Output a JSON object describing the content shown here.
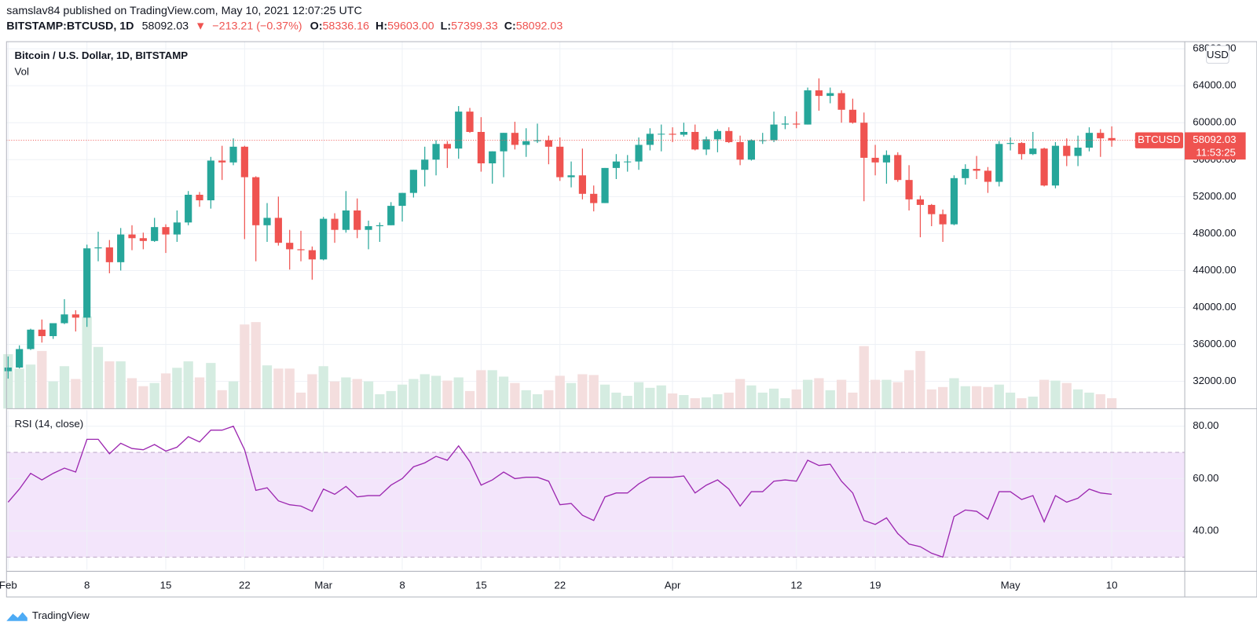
{
  "header": {
    "publisher": "samslav84 published on TradingView.com, May 10, 2021 12:07:25 UTC",
    "symbol": "BITSTAMP:BTCUSD, 1D",
    "last": "58092.03",
    "direction": "▼",
    "change": "−213.21 (−0.37%)",
    "ohlc": [
      {
        "label": "O:",
        "value": "58336.16"
      },
      {
        "label": "H:",
        "value": "59603.00"
      },
      {
        "label": "L:",
        "value": "57399.33"
      },
      {
        "label": "C:",
        "value": "58092.03"
      }
    ]
  },
  "footer": {
    "brand": "TradingView"
  },
  "chart_data": {
    "type": "candlestick",
    "title": "Bitcoin / U.S. Dollar, 1D, BITSTAMP",
    "volume_label": "Vol",
    "currency": "USD",
    "symbol_label": "BTCUSD",
    "countdown": "11:53:25",
    "up_color": "#26a69a",
    "down_color": "#ef5350",
    "volume_up_color": "#d5ece1",
    "volume_down_color": "#f4dede",
    "grid": true,
    "x": [
      "Feb 1",
      "Feb 2",
      "Feb 3",
      "Feb 4",
      "Feb 5",
      "Feb 6",
      "Feb 7",
      "Feb 8",
      "Feb 9",
      "Feb 10",
      "Feb 11",
      "Feb 12",
      "Feb 13",
      "Feb 14",
      "Feb 15",
      "Feb 16",
      "Feb 17",
      "Feb 18",
      "Feb 19",
      "Feb 20",
      "Feb 21",
      "Feb 22",
      "Feb 23",
      "Feb 24",
      "Feb 25",
      "Feb 26",
      "Feb 27",
      "Feb 28",
      "Mar 1",
      "Mar 2",
      "Mar 3",
      "Mar 4",
      "Mar 5",
      "Mar 6",
      "Mar 7",
      "Mar 8",
      "Mar 9",
      "Mar 10",
      "Mar 11",
      "Mar 12",
      "Mar 13",
      "Mar 14",
      "Mar 15",
      "Mar 16",
      "Mar 17",
      "Mar 18",
      "Mar 19",
      "Mar 20",
      "Mar 21",
      "Mar 22",
      "Mar 23",
      "Mar 24",
      "Mar 25",
      "Mar 26",
      "Mar 27",
      "Mar 28",
      "Mar 29",
      "Mar 30",
      "Mar 31",
      "Apr 1",
      "Apr 2",
      "Apr 3",
      "Apr 4",
      "Apr 5",
      "Apr 6",
      "Apr 7",
      "Apr 8",
      "Apr 9",
      "Apr 10",
      "Apr 11",
      "Apr 12",
      "Apr 13",
      "Apr 14",
      "Apr 15",
      "Apr 16",
      "Apr 17",
      "Apr 18",
      "Apr 19",
      "Apr 20",
      "Apr 21",
      "Apr 22",
      "Apr 23",
      "Apr 24",
      "Apr 25",
      "Apr 26",
      "Apr 27",
      "Apr 28",
      "Apr 29",
      "Apr 30",
      "May 1",
      "May 2",
      "May 3",
      "May 4",
      "May 5",
      "May 6",
      "May 7",
      "May 8",
      "May 9",
      "May 10"
    ],
    "open": [
      33100,
      33500,
      35500,
      37600,
      36900,
      38300,
      39250,
      38900,
      46400,
      46500,
      44900,
      47900,
      47500,
      47200,
      48700,
      47900,
      49200,
      52200,
      51600,
      55900,
      55700,
      57400,
      54100,
      48900,
      49700,
      47000,
      46300,
      46200,
      45200,
      49600,
      48400,
      50500,
      48400,
      48800,
      48900,
      51000,
      52400,
      54900,
      56000,
      57700,
      57200,
      61200,
      59000,
      55600,
      56900,
      58900,
      57600,
      58000,
      58100,
      57400,
      54100,
      54300,
      52300,
      51300,
      55100,
      55800,
      55800,
      57600,
      58800,
      58800,
      58700,
      59000,
      57100,
      58200,
      59100,
      57900,
      56000,
      58100,
      58100,
      59800,
      59900,
      59800,
      63500,
      62900,
      63200,
      61400,
      60000,
      56200,
      55700,
      56500,
      53800,
      51700,
      51100,
      50100,
      49000,
      54000,
      55000,
      54800,
      53600,
      57700,
      57800,
      56600,
      57200,
      53200,
      57500,
      56400,
      57300,
      58900,
      58336.16
    ],
    "high": [
      34700,
      35900,
      37700,
      38700,
      38300,
      40900,
      39700,
      46800,
      48200,
      47300,
      48600,
      48900,
      48100,
      49700,
      49000,
      50500,
      52600,
      52500,
      56300,
      57500,
      58300,
      57500,
      54200,
      51300,
      52000,
      48400,
      48300,
      46600,
      49800,
      50200,
      52600,
      51800,
      49400,
      49200,
      51400,
      52400,
      54900,
      57400,
      58100,
      58000,
      61800,
      61600,
      60600,
      56900,
      58900,
      60100,
      59400,
      59900,
      58600,
      58400,
      55800,
      57200,
      53200,
      55100,
      56600,
      56500,
      58400,
      59400,
      59800,
      59500,
      60000,
      59800,
      58500,
      59300,
      59500,
      58600,
      58200,
      58900,
      61200,
      60700,
      61200,
      63800,
      64800,
      63800,
      63500,
      62600,
      61100,
      57600,
      57000,
      56800,
      55400,
      52100,
      51200,
      50600,
      54300,
      55500,
      56400,
      55200,
      58000,
      58400,
      57900,
      59000,
      57300,
      57900,
      58300,
      58600,
      59500,
      59300,
      59603
    ],
    "low": [
      32300,
      33400,
      35400,
      36200,
      36600,
      38200,
      37400,
      37900,
      45000,
      43700,
      44000,
      46200,
      46300,
      47100,
      45900,
      47100,
      48900,
      50900,
      50700,
      53800,
      55400,
      47400,
      45000,
      47100,
      46700,
      44100,
      45000,
      43000,
      45100,
      47000,
      48100,
      47500,
      46300,
      47100,
      48900,
      49300,
      51900,
      53100,
      54300,
      55100,
      56100,
      58900,
      54700,
      53400,
      54100,
      57100,
      56300,
      57800,
      55500,
      53700,
      53000,
      51700,
      50400,
      51300,
      53900,
      54700,
      54900,
      57000,
      56900,
      57900,
      58500,
      57000,
      56500,
      56800,
      57800,
      55400,
      55900,
      57700,
      57900,
      59300,
      59400,
      59800,
      61300,
      62100,
      60000,
      59900,
      51500,
      54300,
      53400,
      53600,
      50500,
      47600,
      48800,
      47100,
      48900,
      53300,
      53900,
      52400,
      53100,
      57000,
      56000,
      56500,
      53100,
      52900,
      55300,
      55300,
      56900,
      56300,
      57399.33
    ],
    "close": [
      33500,
      35500,
      37600,
      36900,
      38300,
      39250,
      38900,
      46400,
      46500,
      44900,
      47900,
      47500,
      47200,
      48700,
      47900,
      49200,
      52200,
      51600,
      55900,
      55700,
      57400,
      54100,
      48900,
      49700,
      47000,
      46300,
      46200,
      45200,
      49600,
      48400,
      50500,
      48400,
      48800,
      48900,
      51000,
      52400,
      54900,
      56000,
      57700,
      57200,
      61200,
      59000,
      55600,
      56900,
      58900,
      57600,
      58000,
      58100,
      57400,
      54100,
      54300,
      52300,
      51300,
      55100,
      55800,
      55800,
      57600,
      58800,
      58800,
      58700,
      59000,
      57100,
      58200,
      59100,
      57900,
      56000,
      58100,
      58100,
      59800,
      59900,
      59800,
      63500,
      62900,
      63200,
      61400,
      60000,
      56200,
      55700,
      56500,
      53800,
      51700,
      51100,
      50100,
      49000,
      54000,
      55000,
      54800,
      53600,
      57700,
      57800,
      56600,
      57200,
      53200,
      57500,
      56400,
      57300,
      58900,
      58305.24,
      58092.03
    ],
    "volume": [
      13600,
      10000,
      11000,
      14400,
      6800,
      10600,
      7400,
      23000,
      15400,
      11800,
      11800,
      7600,
      5600,
      6400,
      8800,
      10200,
      11800,
      7800,
      11400,
      4600,
      6800,
      21000,
      21600,
      10800,
      10000,
      10000,
      4000,
      8600,
      10600,
      6800,
      7800,
      7400,
      6800,
      3600,
      4400,
      6000,
      7400,
      8600,
      8200,
      7000,
      7800,
      4400,
      9600,
      9600,
      8000,
      6400,
      4600,
      3600,
      4600,
      8200,
      6400,
      8600,
      8400,
      6000,
      4000,
      3200,
      6600,
      5200,
      5800,
      3800,
      3400,
      2600,
      2800,
      3600,
      4000,
      7400,
      5800,
      4000,
      5000,
      2600,
      4800,
      7200,
      7600,
      4600,
      7200,
      4000,
      15600,
      7200,
      7200,
      6600,
      9600,
      14400,
      4800,
      5400,
      7600,
      5600,
      5600,
      5400,
      6000,
      4000,
      2600,
      3000,
      7200,
      7000,
      6400,
      4800,
      4000,
      3600,
      2600
    ],
    "ylim": [
      29050,
      68770
    ],
    "yticks": [
      {
        "value": 32000,
        "label": "32000.00"
      },
      {
        "value": 36000,
        "label": "36000.00"
      },
      {
        "value": 40000,
        "label": "40000.00"
      },
      {
        "value": 44000,
        "label": "44000.00"
      },
      {
        "value": 48000,
        "label": "48000.00"
      },
      {
        "value": 52000,
        "label": "52000.00"
      },
      {
        "value": 56000,
        "label": "56000.00"
      },
      {
        "value": 60000,
        "label": "60000.00"
      },
      {
        "value": 64000,
        "label": "64000.00"
      },
      {
        "value": 68000,
        "label": "68000.00"
      }
    ],
    "xticks": [
      {
        "value": "Feb 1",
        "label": "Feb"
      },
      {
        "value": "Feb 8",
        "label": "8"
      },
      {
        "value": "Feb 15",
        "label": "15"
      },
      {
        "value": "Feb 22",
        "label": "22"
      },
      {
        "value": "Mar 1",
        "label": "Mar"
      },
      {
        "value": "Mar 8",
        "label": "8"
      },
      {
        "value": "Mar 15",
        "label": "15"
      },
      {
        "value": "Mar 22",
        "label": "22"
      },
      {
        "value": "Apr 1",
        "label": "Apr"
      },
      {
        "value": "Apr 12",
        "label": "12"
      },
      {
        "value": "Apr 19",
        "label": "19"
      },
      {
        "value": "May 1",
        "label": "May"
      },
      {
        "value": "May 10",
        "label": "10"
      }
    ],
    "rsi": {
      "title": "RSI (14, close)",
      "color": "#9c27b0",
      "band_color": "#f3e5fb",
      "bands": [
        30,
        70
      ],
      "values": [
        51,
        56,
        62,
        59.5,
        62,
        64,
        62.5,
        75,
        75,
        69.5,
        73.5,
        71.5,
        71,
        73,
        70.5,
        72,
        76,
        74,
        78.5,
        78.5,
        80,
        71,
        55.5,
        56.5,
        51.5,
        50,
        49.5,
        47.5,
        56,
        54,
        57,
        53,
        53.5,
        53.5,
        57.5,
        60,
        64.5,
        66,
        68.5,
        67,
        72.5,
        66.5,
        57.5,
        59.5,
        62.5,
        60,
        60.5,
        60.5,
        59,
        50,
        50.5,
        46,
        44,
        53,
        54.5,
        54.5,
        58,
        60.5,
        60.5,
        60.5,
        61,
        54.5,
        57.5,
        59.5,
        56,
        49.5,
        55,
        55,
        59,
        59.5,
        59,
        67,
        65,
        65.5,
        59,
        54.5,
        44,
        42.5,
        45,
        39,
        35,
        34,
        31.5,
        30,
        45.5,
        48,
        47.5,
        44.5,
        55,
        55,
        52,
        53.5,
        43.5,
        53.5,
        51,
        52.5,
        56,
        54.5,
        54
      ],
      "ylim": [
        25.2,
        86.1
      ],
      "yticks": [
        {
          "value": 40,
          "label": "40.00"
        },
        {
          "value": 60,
          "label": "60.00"
        },
        {
          "value": 80,
          "label": "80.00"
        }
      ]
    }
  }
}
